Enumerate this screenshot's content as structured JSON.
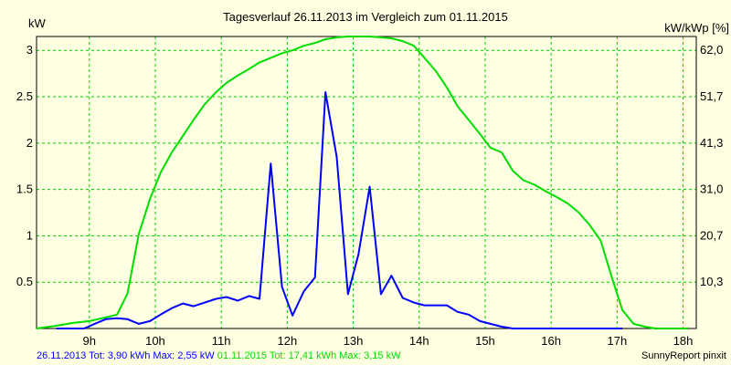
{
  "chart_data": {
    "type": "line",
    "title": "Tagesverlauf 26.11.2013 im Vergleich zum 01.11.2015",
    "ylabel": "kW",
    "ylabel_right": "kW/kWp [%]",
    "ylim": [
      0,
      3.15
    ],
    "y_ticks": [
      "0.5",
      "1",
      "1.5",
      "2",
      "2.5",
      "3"
    ],
    "y_ticks_right": [
      "10,3",
      "20,7",
      "31,0",
      "41,3",
      "51,7",
      "62,0"
    ],
    "x_ticks": [
      "9h",
      "10h",
      "11h",
      "12h",
      "13h",
      "14h",
      "15h",
      "16h",
      "17h",
      "18h"
    ],
    "grid": true,
    "series": [
      {
        "name": "26.11.2013",
        "color": "#0000ff",
        "x": [
          8.5,
          8.75,
          8.92,
          9.08,
          9.25,
          9.42,
          9.58,
          9.75,
          9.92,
          10.08,
          10.25,
          10.42,
          10.58,
          10.75,
          10.92,
          11.08,
          11.25,
          11.42,
          11.58,
          11.75,
          11.92,
          12.08,
          12.25,
          12.42,
          12.58,
          12.75,
          12.92,
          13.08,
          13.25,
          13.42,
          13.58,
          13.75,
          13.92,
          14.08,
          14.25,
          14.42,
          14.58,
          14.75,
          14.92,
          15.08,
          15.25,
          15.42,
          15.58,
          15.75,
          15.92,
          16.08,
          16.25,
          16.42,
          16.58,
          16.75,
          16.92,
          17.08
        ],
        "y": [
          0,
          0,
          0,
          0.05,
          0.1,
          0.11,
          0.1,
          0.05,
          0.08,
          0.15,
          0.22,
          0.27,
          0.24,
          0.28,
          0.32,
          0.34,
          0.3,
          0.35,
          0.32,
          1.78,
          0.45,
          0.14,
          0.4,
          0.55,
          2.55,
          1.85,
          0.37,
          0.8,
          1.53,
          0.37,
          0.57,
          0.33,
          0.28,
          0.25,
          0.25,
          0.25,
          0.18,
          0.15,
          0.08,
          0.05,
          0.02,
          0,
          0,
          0,
          0,
          0,
          0,
          0,
          0,
          0,
          0,
          0
        ]
      },
      {
        "name": "01.11.2015",
        "color": "#00dd00",
        "x": [
          8.2,
          8.5,
          8.75,
          9.0,
          9.25,
          9.42,
          9.58,
          9.75,
          9.92,
          10.08,
          10.25,
          10.42,
          10.58,
          10.75,
          10.92,
          11.08,
          11.25,
          11.42,
          11.58,
          11.75,
          11.92,
          12.08,
          12.25,
          12.42,
          12.58,
          12.75,
          12.92,
          13.08,
          13.25,
          13.42,
          13.58,
          13.75,
          13.92,
          14.08,
          14.25,
          14.42,
          14.58,
          14.75,
          14.92,
          15.08,
          15.25,
          15.42,
          15.58,
          15.75,
          15.92,
          16.08,
          16.25,
          16.42,
          16.58,
          16.75,
          16.92,
          17.08,
          17.25,
          17.42,
          17.58,
          17.75,
          17.92,
          18.08
        ],
        "y": [
          0,
          0.03,
          0.06,
          0.08,
          0.12,
          0.15,
          0.38,
          1.02,
          1.4,
          1.68,
          1.9,
          2.08,
          2.25,
          2.42,
          2.55,
          2.65,
          2.73,
          2.8,
          2.87,
          2.92,
          2.97,
          3.0,
          3.05,
          3.08,
          3.12,
          3.14,
          3.15,
          3.15,
          3.15,
          3.14,
          3.13,
          3.1,
          3.05,
          2.92,
          2.78,
          2.6,
          2.4,
          2.25,
          2.1,
          1.95,
          1.9,
          1.7,
          1.6,
          1.55,
          1.48,
          1.42,
          1.35,
          1.25,
          1.12,
          0.95,
          0.55,
          0.2,
          0.05,
          0.02,
          0,
          0,
          0,
          0
        ]
      }
    ],
    "legend": [
      {
        "text": "26.11.2013 Tot: 3,90 kWh Max: 2,55 kW",
        "color": "#0000ff"
      },
      {
        "text": "01.11.2015 Tot: 17,41 kWh Max: 3,15 kW",
        "color": "#00dd00"
      }
    ],
    "credit": "SunnyReport pinxit"
  }
}
